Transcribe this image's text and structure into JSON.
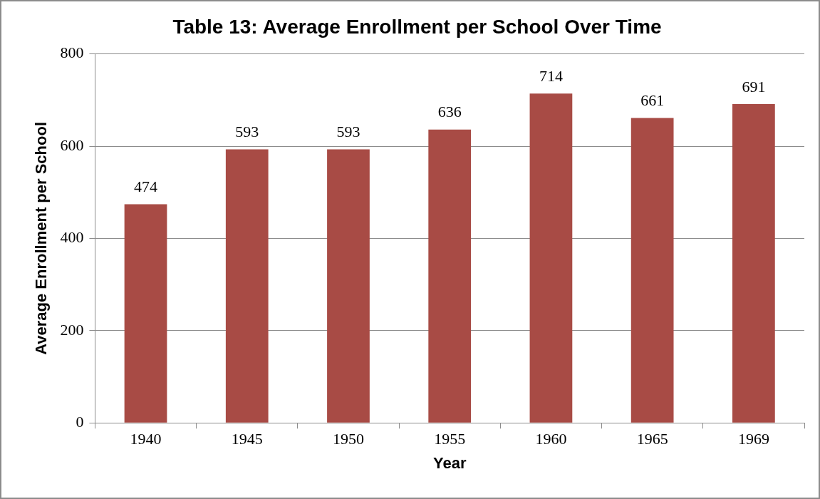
{
  "chart_data": {
    "type": "bar",
    "title": "Table 13: Average Enrollment per School Over Time",
    "xlabel": "Year",
    "ylabel": "Average Enrollment per School",
    "categories": [
      "1940",
      "1945",
      "1950",
      "1955",
      "1960",
      "1965",
      "1969"
    ],
    "values": [
      474,
      593,
      593,
      636,
      714,
      661,
      691
    ],
    "color": "#a84b45",
    "ylim": [
      0,
      800
    ],
    "yticks": [
      0,
      200,
      400,
      600,
      800
    ],
    "grid": "y",
    "data_labels": true,
    "legend": false
  }
}
